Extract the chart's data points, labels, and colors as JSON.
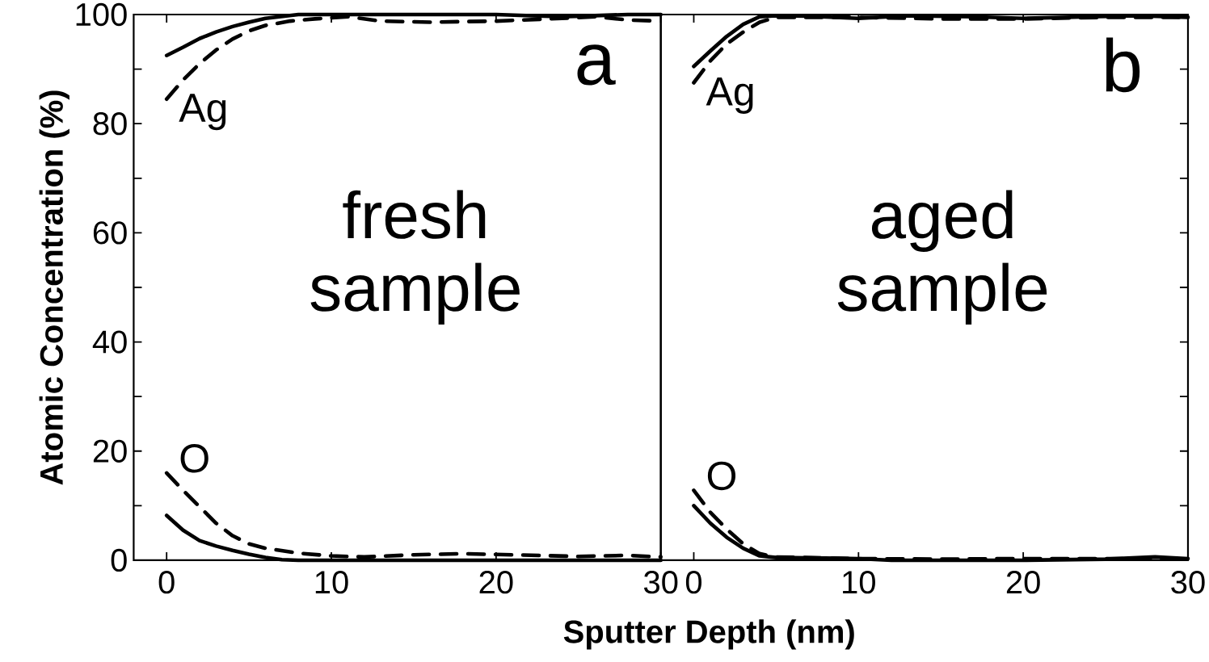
{
  "chart_data": [
    {
      "type": "line",
      "title": "a",
      "xlabel": "Sputter Depth (nm)",
      "ylabel": "Atomic Concentration (%)",
      "xlim": [
        -2,
        30
      ],
      "ylim": [
        0,
        100
      ],
      "xticks": [
        0,
        10,
        20,
        30
      ],
      "yticks": [
        0,
        {
          "value": 10,
          "label": null
        },
        20,
        {
          "value": 30,
          "label": null
        },
        40,
        {
          "value": 50,
          "label": null
        },
        60,
        {
          "value": 70,
          "label": null
        },
        80,
        {
          "value": 90,
          "label": null
        },
        100
      ],
      "annotations": [
        "fresh sample",
        "Ag",
        "O"
      ],
      "series": [
        {
          "color": "#000000",
          "line_style": "solid",
          "x": [
            0,
            1,
            2,
            3,
            4,
            5,
            6,
            8,
            10,
            15,
            20,
            24,
            26,
            28,
            30
          ],
          "values": [
            92.5,
            94,
            95.6,
            96.8,
            97.8,
            98.6,
            99.3,
            100,
            100,
            100,
            100,
            99.6,
            99.8,
            100,
            100
          ]
        },
        {
          "color": "#000000",
          "line_style": "dashed",
          "x": [
            0,
            1,
            2,
            3,
            4,
            5,
            6,
            7.5,
            9,
            11,
            13,
            16,
            20,
            24,
            26,
            28,
            30
          ],
          "values": [
            84.5,
            88,
            91,
            93.5,
            95.5,
            97,
            98,
            98.8,
            99.2,
            99.6,
            98.8,
            98.6,
            98.8,
            99.3,
            99.6,
            99,
            98.8
          ]
        },
        {
          "color": "#000000",
          "line_style": "solid",
          "x": [
            0,
            1,
            2,
            3,
            4,
            5,
            6,
            7,
            8,
            10,
            15,
            20,
            25,
            30
          ],
          "values": [
            8.2,
            5.5,
            3.6,
            2.6,
            1.8,
            1.1,
            0.5,
            0.1,
            0,
            0,
            0,
            0,
            0,
            0
          ]
        },
        {
          "color": "#000000",
          "line_style": "dashed",
          "x": [
            0,
            1,
            2,
            3,
            4,
            5,
            6,
            8,
            10,
            12,
            15,
            18,
            21,
            25,
            28,
            30
          ],
          "values": [
            16,
            12.8,
            9.8,
            6.8,
            4.5,
            3,
            2.2,
            1.3,
            0.8,
            0.6,
            1,
            1.2,
            1,
            0.7,
            0.9,
            0.6
          ]
        }
      ]
    },
    {
      "type": "line",
      "title": "b",
      "tick_labels": "x",
      "xlim": [
        -2,
        30
      ],
      "ylim": [
        0,
        100
      ],
      "xticks": [
        0,
        10,
        20,
        30
      ],
      "yticks": [
        0,
        {
          "value": 10,
          "label": null
        },
        20,
        {
          "value": 30,
          "label": null
        },
        40,
        {
          "value": 50,
          "label": null
        },
        60,
        {
          "value": 70,
          "label": null
        },
        80,
        {
          "value": 90,
          "label": null
        },
        100
      ],
      "annotations": [
        "aged sample",
        "Ag",
        "O"
      ],
      "series": [
        {
          "color": "#000000",
          "line_style": "solid",
          "x": [
            0,
            1,
            2,
            3,
            4,
            5,
            7,
            10,
            13,
            17,
            20,
            24,
            27,
            30
          ],
          "values": [
            90.5,
            93.3,
            96,
            98.2,
            99.6,
            99.8,
            99.7,
            99.3,
            99.8,
            99.6,
            99.3,
            99.6,
            99.8,
            99.5
          ]
        },
        {
          "color": "#000000",
          "line_style": "dashed",
          "x": [
            0,
            1,
            2,
            3,
            4,
            5,
            10,
            15,
            20,
            25,
            30
          ],
          "values": [
            87.5,
            91.5,
            94.6,
            96.8,
            98.6,
            99.5,
            99.5,
            99.2,
            99.2,
            99.5,
            99.5
          ]
        },
        {
          "color": "#000000",
          "line_style": "solid",
          "x": [
            0,
            1,
            2,
            3,
            4,
            5,
            8,
            10,
            12,
            15,
            20,
            25,
            28,
            30
          ],
          "values": [
            10,
            6.8,
            4.2,
            2.2,
            0.8,
            0.5,
            0.4,
            0.3,
            0,
            0,
            0,
            0.2,
            0.6,
            0.3
          ]
        },
        {
          "color": "#000000",
          "line_style": "dashed",
          "x": [
            0,
            1,
            2,
            3,
            4,
            5,
            10,
            15,
            20,
            25,
            30
          ],
          "values": [
            12.8,
            8.8,
            5.7,
            3,
            1.2,
            0.6,
            0.3,
            0.2,
            0.3,
            0.3,
            0.3
          ]
        }
      ]
    }
  ]
}
